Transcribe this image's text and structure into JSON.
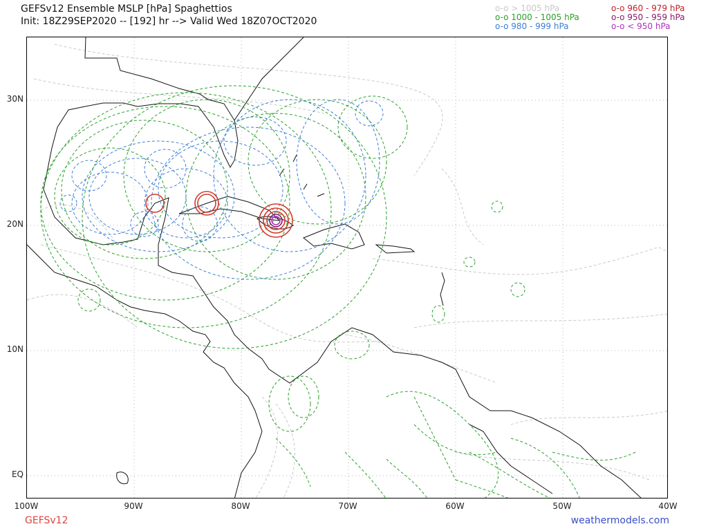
{
  "header": {
    "title": "GEFSv12 Ensemble MSLP [hPa] Spaghettios",
    "subtitle": "Init: 18Z29SEP2020 -- [192] hr --> Valid Wed 18Z07OCT2020"
  },
  "legend": {
    "gt1005": {
      "label": "o-o > 1005 hPa",
      "color": "#c8c8c8"
    },
    "r1000_1005": {
      "label": "o-o 1000 - 1005 hPa",
      "color": "#2aa02a"
    },
    "r980_999": {
      "label": "o-o 980 - 999 hPa",
      "color": "#3c7fd6"
    },
    "r960_979": {
      "label": "o-o 960 - 979 hPa",
      "color": "#c0222a"
    },
    "r950_959": {
      "label": "o-o 950 - 959 hPa",
      "color": "#8a1a6a"
    },
    "lt950": {
      "label": "o-o < 950 hPa",
      "color": "#b030c0"
    }
  },
  "axes": {
    "lat_ticks": [
      "30N",
      "20N",
      "10N",
      "EQ"
    ],
    "lon_ticks": [
      "100W",
      "90W",
      "80W",
      "70W",
      "60W",
      "50W",
      "40W"
    ]
  },
  "footer": {
    "model": "GEFSv12",
    "site": "weathermodels.com"
  }
}
